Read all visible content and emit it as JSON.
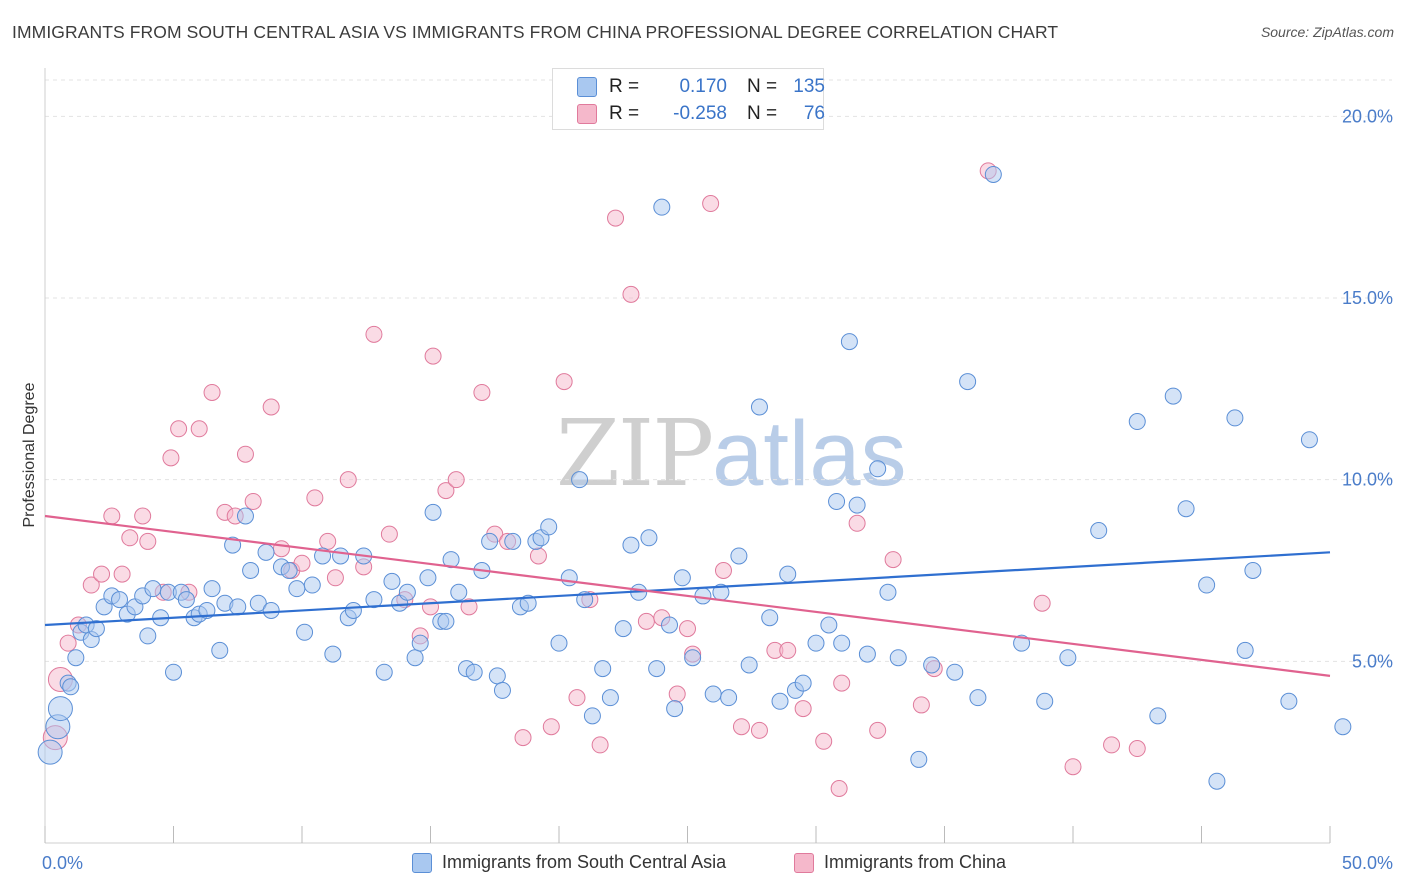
{
  "title": "IMMIGRANTS FROM SOUTH CENTRAL ASIA VS IMMIGRANTS FROM CHINA PROFESSIONAL DEGREE CORRELATION CHART",
  "source": "Source: ZipAtlas.com",
  "watermark": {
    "zip": "ZIP",
    "atlas": "atlas"
  },
  "colors": {
    "blue_fill": "#a9c8f0",
    "blue_stroke": "#5b8fd6",
    "blue_line": "#2f6fd0",
    "pink_fill": "#f5b8cb",
    "pink_stroke": "#e07a9c",
    "pink_line": "#e0628f",
    "tick_text": "#4a7cc9",
    "grid": "#e3e3e3"
  },
  "stats": {
    "r_label": "R =",
    "n_label": "N =",
    "series1": {
      "r": "0.170",
      "n": "135"
    },
    "series2": {
      "r": "-0.258",
      "n": "76"
    }
  },
  "chart_data": {
    "type": "scatter",
    "ylabel": "Professional Degree",
    "xlim": [
      0,
      50
    ],
    "ylim": [
      0,
      21
    ],
    "x_tick_labels": [
      "0.0%",
      "50.0%"
    ],
    "y_ticks": [
      5,
      10,
      15,
      20
    ],
    "y_tick_labels": [
      "5.0%",
      "10.0%",
      "15.0%",
      "20.0%"
    ],
    "legend_placement": "bottom",
    "grid": "horizontal-dashed",
    "series": [
      {
        "name": "Immigrants from South Central Asia",
        "trend": {
          "x": [
            0,
            50
          ],
          "y": [
            6.0,
            8.0
          ]
        },
        "points": [
          [
            0.2,
            2.5
          ],
          [
            0.5,
            3.2
          ],
          [
            0.6,
            3.7
          ],
          [
            0.9,
            4.4
          ],
          [
            1.0,
            4.3
          ],
          [
            1.2,
            5.1
          ],
          [
            1.4,
            5.8
          ],
          [
            1.6,
            6.0
          ],
          [
            1.8,
            5.6
          ],
          [
            2.0,
            5.9
          ],
          [
            2.3,
            6.5
          ],
          [
            2.6,
            6.8
          ],
          [
            2.9,
            6.7
          ],
          [
            3.2,
            6.3
          ],
          [
            3.5,
            6.5
          ],
          [
            3.8,
            6.8
          ],
          [
            4.0,
            5.7
          ],
          [
            4.2,
            7.0
          ],
          [
            4.5,
            6.2
          ],
          [
            4.8,
            6.9
          ],
          [
            5.0,
            4.7
          ],
          [
            5.3,
            6.9
          ],
          [
            5.5,
            6.7
          ],
          [
            5.8,
            6.2
          ],
          [
            6.0,
            6.3
          ],
          [
            6.3,
            6.4
          ],
          [
            6.5,
            7.0
          ],
          [
            6.8,
            5.3
          ],
          [
            7.0,
            6.6
          ],
          [
            7.3,
            8.2
          ],
          [
            7.5,
            6.5
          ],
          [
            7.8,
            9.0
          ],
          [
            8.0,
            7.5
          ],
          [
            8.3,
            6.6
          ],
          [
            8.6,
            8.0
          ],
          [
            8.8,
            6.4
          ],
          [
            9.2,
            7.6
          ],
          [
            9.5,
            7.5
          ],
          [
            9.8,
            7.0
          ],
          [
            10.1,
            5.8
          ],
          [
            10.4,
            7.1
          ],
          [
            10.8,
            7.9
          ],
          [
            11.2,
            5.2
          ],
          [
            11.5,
            7.9
          ],
          [
            11.8,
            6.2
          ],
          [
            12.0,
            6.4
          ],
          [
            12.4,
            7.9
          ],
          [
            12.8,
            6.7
          ],
          [
            13.2,
            4.7
          ],
          [
            13.5,
            7.2
          ],
          [
            13.8,
            6.6
          ],
          [
            14.1,
            6.9
          ],
          [
            14.4,
            5.1
          ],
          [
            14.6,
            5.5
          ],
          [
            14.9,
            7.3
          ],
          [
            15.1,
            9.1
          ],
          [
            15.4,
            6.1
          ],
          [
            15.6,
            6.1
          ],
          [
            15.8,
            7.8
          ],
          [
            16.1,
            6.9
          ],
          [
            16.4,
            4.8
          ],
          [
            16.7,
            4.7
          ],
          [
            17.0,
            7.5
          ],
          [
            17.3,
            8.3
          ],
          [
            17.6,
            4.6
          ],
          [
            17.8,
            4.2
          ],
          [
            18.2,
            8.3
          ],
          [
            18.5,
            6.5
          ],
          [
            18.8,
            6.6
          ],
          [
            19.1,
            8.3
          ],
          [
            19.3,
            8.4
          ],
          [
            19.6,
            8.7
          ],
          [
            20.0,
            5.5
          ],
          [
            20.4,
            7.3
          ],
          [
            20.8,
            10.0
          ],
          [
            21.0,
            6.7
          ],
          [
            21.3,
            3.5
          ],
          [
            21.7,
            4.8
          ],
          [
            22.0,
            4.0
          ],
          [
            22.5,
            5.9
          ],
          [
            22.8,
            8.2
          ],
          [
            23.1,
            6.9
          ],
          [
            23.5,
            8.4
          ],
          [
            23.8,
            4.8
          ],
          [
            24.0,
            17.5
          ],
          [
            24.3,
            6.0
          ],
          [
            24.5,
            3.7
          ],
          [
            24.8,
            7.3
          ],
          [
            25.2,
            5.1
          ],
          [
            25.6,
            6.8
          ],
          [
            26.0,
            4.1
          ],
          [
            26.3,
            6.9
          ],
          [
            26.6,
            4.0
          ],
          [
            27.0,
            7.9
          ],
          [
            27.4,
            4.9
          ],
          [
            27.8,
            12.0
          ],
          [
            28.2,
            6.2
          ],
          [
            28.6,
            3.9
          ],
          [
            28.9,
            7.4
          ],
          [
            29.2,
            4.2
          ],
          [
            29.5,
            4.4
          ],
          [
            30.0,
            5.5
          ],
          [
            30.5,
            6.0
          ],
          [
            30.8,
            9.4
          ],
          [
            31.0,
            5.5
          ],
          [
            31.3,
            13.8
          ],
          [
            31.6,
            9.3
          ],
          [
            32.0,
            5.2
          ],
          [
            32.4,
            10.3
          ],
          [
            32.8,
            6.9
          ],
          [
            33.2,
            5.1
          ],
          [
            34.0,
            2.3
          ],
          [
            34.5,
            4.9
          ],
          [
            35.4,
            4.7
          ],
          [
            35.9,
            12.7
          ],
          [
            36.3,
            4.0
          ],
          [
            36.9,
            18.4
          ],
          [
            38.0,
            5.5
          ],
          [
            38.9,
            3.9
          ],
          [
            39.8,
            5.1
          ],
          [
            41.0,
            8.6
          ],
          [
            42.5,
            11.6
          ],
          [
            43.3,
            3.5
          ],
          [
            43.9,
            12.3
          ],
          [
            44.4,
            9.2
          ],
          [
            45.2,
            7.1
          ],
          [
            45.6,
            1.7
          ],
          [
            46.3,
            11.7
          ],
          [
            46.7,
            5.3
          ],
          [
            47.0,
            7.5
          ],
          [
            48.4,
            3.9
          ],
          [
            49.2,
            11.1
          ],
          [
            50.5,
            3.2
          ]
        ]
      },
      {
        "name": "Immigrants from China",
        "trend": {
          "x": [
            0,
            50
          ],
          "y": [
            9.0,
            4.6
          ]
        },
        "points": [
          [
            0.4,
            2.9
          ],
          [
            0.6,
            4.5
          ],
          [
            0.9,
            5.5
          ],
          [
            1.3,
            6.0
          ],
          [
            1.8,
            7.1
          ],
          [
            2.2,
            7.4
          ],
          [
            2.6,
            9.0
          ],
          [
            3.0,
            7.4
          ],
          [
            3.3,
            8.4
          ],
          [
            3.8,
            9.0
          ],
          [
            4.0,
            8.3
          ],
          [
            4.6,
            6.9
          ],
          [
            4.9,
            10.6
          ],
          [
            5.2,
            11.4
          ],
          [
            5.6,
            6.9
          ],
          [
            6.0,
            11.4
          ],
          [
            6.5,
            12.4
          ],
          [
            7.0,
            9.1
          ],
          [
            7.4,
            9.0
          ],
          [
            7.8,
            10.7
          ],
          [
            8.1,
            9.4
          ],
          [
            8.8,
            12.0
          ],
          [
            9.2,
            8.1
          ],
          [
            9.6,
            7.5
          ],
          [
            10.0,
            7.7
          ],
          [
            10.5,
            9.5
          ],
          [
            11.0,
            8.3
          ],
          [
            11.3,
            7.3
          ],
          [
            11.8,
            10.0
          ],
          [
            12.4,
            7.6
          ],
          [
            12.8,
            14.0
          ],
          [
            13.4,
            8.5
          ],
          [
            14.0,
            6.7
          ],
          [
            14.6,
            5.7
          ],
          [
            15.1,
            13.4
          ],
          [
            15.6,
            9.7
          ],
          [
            16.0,
            10.0
          ],
          [
            16.5,
            6.5
          ],
          [
            17.0,
            12.4
          ],
          [
            17.5,
            8.5
          ],
          [
            18.0,
            8.3
          ],
          [
            18.6,
            2.9
          ],
          [
            19.2,
            7.9
          ],
          [
            19.7,
            3.2
          ],
          [
            20.2,
            12.7
          ],
          [
            20.7,
            4.0
          ],
          [
            21.2,
            6.7
          ],
          [
            21.6,
            2.7
          ],
          [
            22.2,
            17.2
          ],
          [
            22.8,
            15.1
          ],
          [
            23.4,
            6.1
          ],
          [
            24.0,
            6.2
          ],
          [
            24.6,
            4.1
          ],
          [
            25.2,
            5.2
          ],
          [
            25.9,
            17.6
          ],
          [
            26.4,
            7.5
          ],
          [
            27.1,
            3.2
          ],
          [
            27.8,
            3.1
          ],
          [
            28.4,
            5.3
          ],
          [
            28.9,
            5.3
          ],
          [
            29.5,
            3.7
          ],
          [
            30.3,
            2.8
          ],
          [
            30.9,
            1.5
          ],
          [
            31.6,
            8.8
          ],
          [
            32.4,
            3.1
          ],
          [
            33.0,
            7.8
          ],
          [
            34.1,
            3.8
          ],
          [
            36.7,
            18.5
          ],
          [
            38.8,
            6.6
          ],
          [
            40.0,
            2.1
          ],
          [
            41.5,
            2.7
          ],
          [
            42.5,
            2.6
          ],
          [
            31.0,
            4.4
          ],
          [
            34.6,
            4.8
          ],
          [
            25.0,
            5.9
          ],
          [
            15.0,
            6.5
          ]
        ]
      }
    ]
  }
}
